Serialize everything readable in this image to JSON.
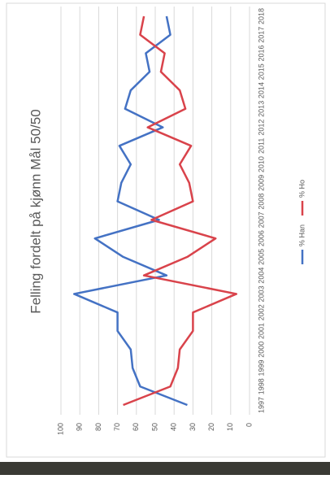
{
  "chart_data": {
    "type": "line",
    "title": "Felling fordelt på kjønn Mål 50/50",
    "categories": [
      "1997",
      "1998",
      "1999",
      "2000",
      "2001",
      "2002",
      "2003",
      "2004",
      "2005",
      "2006",
      "2007",
      "2008",
      "2009",
      "2010",
      "2011",
      "2012",
      "2013",
      "2014",
      "2015",
      "2016",
      "2017",
      "2018"
    ],
    "series": [
      {
        "name": "% Han",
        "color": "#4472c4",
        "values": [
          33,
          58,
          62,
          63,
          70,
          70,
          93,
          44,
          67,
          82,
          48,
          70,
          68,
          63,
          69,
          46,
          66,
          63,
          53,
          55,
          42,
          44
        ]
      },
      {
        "name": "% Ho",
        "color": "#d9434b",
        "values": [
          67,
          42,
          38,
          37,
          30,
          30,
          7,
          56,
          33,
          18,
          52,
          30,
          32,
          37,
          31,
          54,
          34,
          37,
          47,
          45,
          58,
          56
        ]
      }
    ],
    "ylim": [
      0,
      100
    ],
    "yticks": [
      0,
      10,
      20,
      30,
      40,
      50,
      60,
      70,
      80,
      90,
      100
    ],
    "grid": true
  }
}
